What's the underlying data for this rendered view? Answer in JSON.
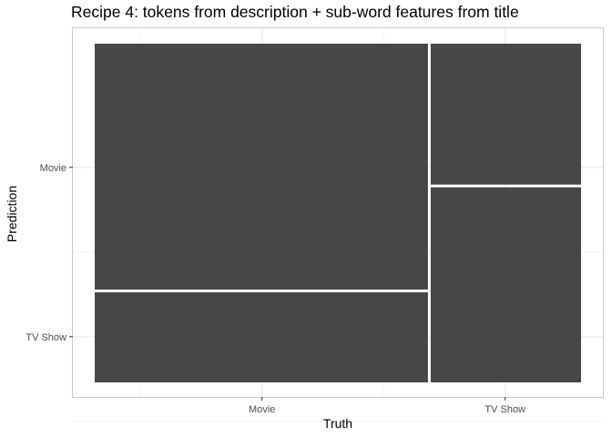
{
  "chart_data": {
    "type": "mosaic",
    "title": "Recipe 4: tokens from description + sub-word features from title",
    "xlabel": "Truth",
    "ylabel": "Prediction",
    "x_categories": [
      "Movie",
      "TV Show"
    ],
    "y_categories": [
      "Movie",
      "TV Show"
    ],
    "column_shares": [
      0.688,
      0.312
    ],
    "cells": [
      {
        "truth": "Movie",
        "prediction": "Movie",
        "share_of_column": 0.73
      },
      {
        "truth": "Movie",
        "prediction": "TV Show",
        "share_of_column": 0.27
      },
      {
        "truth": "TV Show",
        "prediction": "Movie",
        "share_of_column": 0.42
      },
      {
        "truth": "TV Show",
        "prediction": "TV Show",
        "share_of_column": 0.58
      }
    ],
    "fill_color": "#474747",
    "panel_border_color": "#cccccc",
    "grid_color": "#ebebeb",
    "grid": true,
    "legend": "none"
  }
}
